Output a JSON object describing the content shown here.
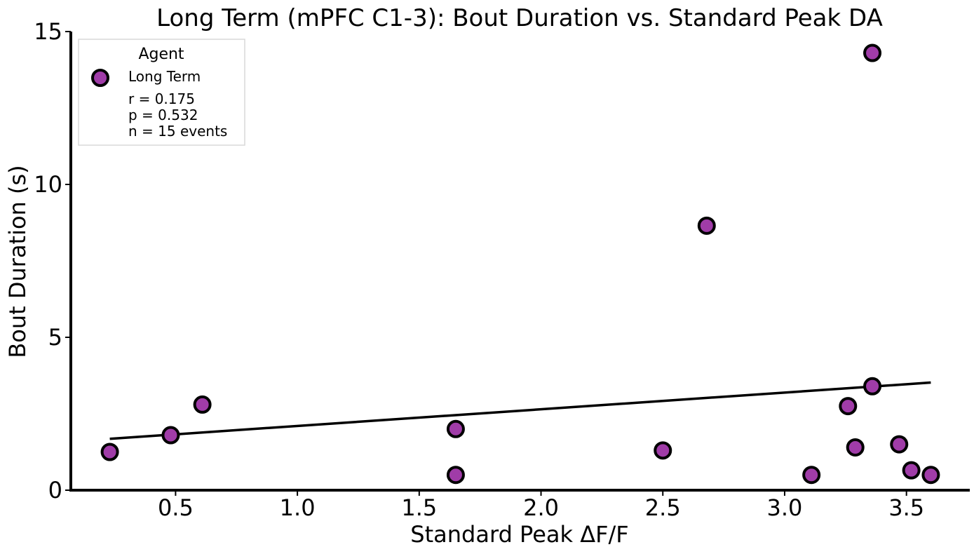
{
  "chart_data": {
    "type": "scatter",
    "title": "Long Term (mPFC C1-3): Bout Duration vs. Standard Peak DA",
    "xlabel": "Standard Peak ΔF/F",
    "ylabel": "Bout Duration (s)",
    "xlim": [
      0.07,
      3.76
    ],
    "ylim": [
      0,
      15
    ],
    "x_ticks": [
      0.5,
      1.0,
      1.5,
      2.0,
      2.5,
      3.0,
      3.5
    ],
    "x_tick_labels": [
      "0.5",
      "1.0",
      "1.5",
      "2.0",
      "2.5",
      "3.0",
      "3.5"
    ],
    "y_ticks": [
      0,
      5,
      10,
      15
    ],
    "y_tick_labels": [
      "0",
      "5",
      "10",
      "15"
    ],
    "grid": false,
    "legend": {
      "title": "Agent",
      "placement": "top-left",
      "entries": [
        "Long Term"
      ],
      "stats": [
        "r = 0.175",
        "p = 0.532",
        "n = 15 events"
      ]
    },
    "marker_color": "#a03ca8",
    "marker_edge_color": "#000000",
    "series": [
      {
        "name": "Long Term",
        "points": [
          {
            "x": 0.23,
            "y": 1.25
          },
          {
            "x": 0.48,
            "y": 1.8
          },
          {
            "x": 0.61,
            "y": 2.8
          },
          {
            "x": 1.65,
            "y": 2.0
          },
          {
            "x": 1.65,
            "y": 0.5
          },
          {
            "x": 2.5,
            "y": 1.3
          },
          {
            "x": 2.68,
            "y": 8.65
          },
          {
            "x": 3.11,
            "y": 0.5
          },
          {
            "x": 3.26,
            "y": 2.75
          },
          {
            "x": 3.29,
            "y": 1.4
          },
          {
            "x": 3.36,
            "y": 14.3
          },
          {
            "x": 3.36,
            "y": 3.4
          },
          {
            "x": 3.47,
            "y": 1.5
          },
          {
            "x": 3.52,
            "y": 0.65
          },
          {
            "x": 3.6,
            "y": 0.5
          }
        ]
      }
    ],
    "fit_line": {
      "x": [
        0.23,
        3.6
      ],
      "y": [
        1.68,
        3.52
      ],
      "color": "#000000"
    }
  }
}
